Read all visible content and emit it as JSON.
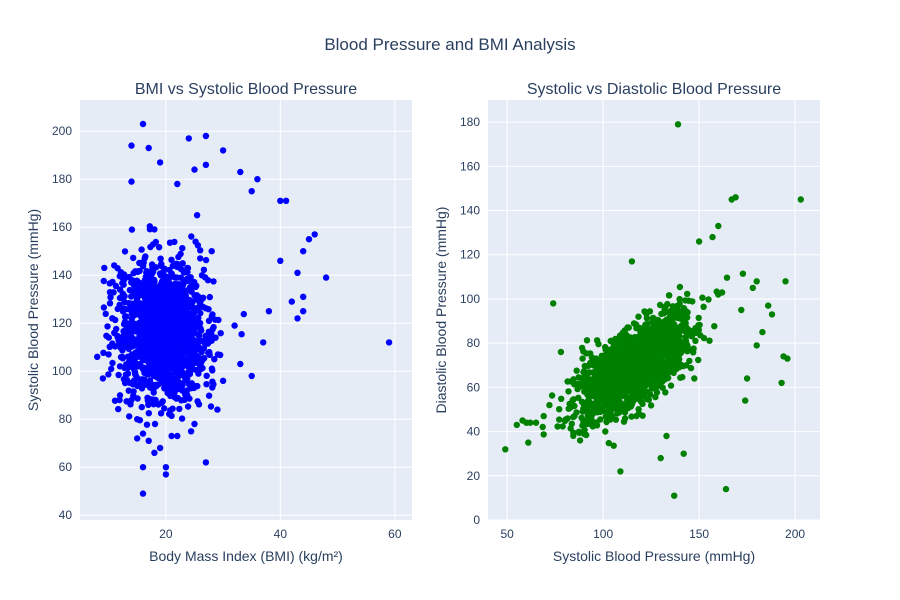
{
  "title": "Blood Pressure and BMI Analysis",
  "chart_data": [
    {
      "type": "scatter",
      "title": "BMI vs Systolic Blood Pressure",
      "xlabel": "Body Mass Index (BMI) (kg/m²)",
      "ylabel": "Systolic Blood Pressure (mmHg)",
      "xlim": [
        5,
        63
      ],
      "ylim": [
        38,
        213
      ],
      "xticks": [
        20,
        40,
        60
      ],
      "yticks": [
        40,
        60,
        80,
        100,
        120,
        140,
        160,
        180,
        200
      ],
      "grid": true,
      "color": "#0000ff",
      "series": [
        {
          "cluster": {
            "count": 1700,
            "x_mean": 19.5,
            "x_sd": 3.6,
            "y_mean": 117,
            "y_sd": 14
          },
          "points": [
            [
              16,
              203
            ],
            [
              27,
              198
            ],
            [
              24,
              197
            ],
            [
              14,
              194
            ],
            [
              17,
              193
            ],
            [
              30,
              192
            ],
            [
              19,
              187
            ],
            [
              27,
              186
            ],
            [
              25,
              184
            ],
            [
              36,
              180
            ],
            [
              33,
              183
            ],
            [
              14,
              179
            ],
            [
              22,
              178
            ],
            [
              40,
              171
            ],
            [
              41,
              171
            ],
            [
              35,
              175
            ],
            [
              46,
              157
            ],
            [
              45,
              155
            ],
            [
              44,
              150
            ],
            [
              40,
              146
            ],
            [
              43,
              141
            ],
            [
              48,
              139
            ],
            [
              44,
              131
            ],
            [
              42,
              129
            ],
            [
              43,
              122
            ],
            [
              44,
              125
            ],
            [
              32,
              119
            ],
            [
              38,
              125
            ],
            [
              59,
              112
            ],
            [
              8,
              106
            ],
            [
              9,
              97
            ],
            [
              10,
              107
            ],
            [
              11,
              116
            ],
            [
              12,
              134
            ],
            [
              14,
              88
            ],
            [
              15,
              80
            ],
            [
              16,
              74
            ],
            [
              15,
              72
            ],
            [
              17,
              71
            ],
            [
              18,
              66
            ],
            [
              16,
              60
            ],
            [
              19,
              68
            ],
            [
              20,
              60
            ],
            [
              20,
              57
            ],
            [
              16,
              49
            ],
            [
              22,
              73
            ],
            [
              21,
              73
            ],
            [
              25,
              78
            ],
            [
              27,
              62
            ],
            [
              29,
              84
            ],
            [
              30,
              96
            ],
            [
              33,
              103
            ],
            [
              35,
              98
            ],
            [
              37,
              112
            ],
            [
              28,
              150
            ],
            [
              26,
              147
            ]
          ]
        }
      ]
    },
    {
      "type": "scatter",
      "title": "Systolic vs Diastolic Blood Pressure",
      "xlabel": "Systolic Blood Pressure (mmHg)",
      "ylabel": "Diastolic Blood Pressure (mmHg)",
      "xlim": [
        40,
        213
      ],
      "ylim": [
        0,
        190
      ],
      "xticks": [
        50,
        100,
        150,
        200
      ],
      "yticks": [
        0,
        20,
        40,
        60,
        80,
        100,
        120,
        140,
        160,
        180
      ],
      "grid": true,
      "color": "#008000",
      "series": [
        {
          "cluster": {
            "count": 1700,
            "x_mean": 117,
            "x_sd": 14,
            "y_mean": 70,
            "y_sd": 11,
            "slope": 0.55
          },
          "points": [
            [
              139,
              179
            ],
            [
              203,
              145
            ],
            [
              169,
              146
            ],
            [
              167,
              145
            ],
            [
              160,
              133
            ],
            [
              157,
              128
            ],
            [
              150,
              126
            ],
            [
              180,
              108
            ],
            [
              178,
              105
            ],
            [
              195,
              108
            ],
            [
              196,
              73
            ],
            [
              193,
              62
            ],
            [
              194,
              74
            ],
            [
              74,
              98
            ],
            [
              49,
              32
            ],
            [
              55,
              43
            ],
            [
              58,
              45
            ],
            [
              60,
              44
            ],
            [
              61,
              35
            ],
            [
              62,
              44
            ],
            [
              65,
              44
            ],
            [
              69,
              47
            ],
            [
              78,
              76
            ],
            [
              72,
              52
            ],
            [
              88,
              36
            ],
            [
              109,
              22
            ],
            [
              137,
              11
            ],
            [
              164,
              14
            ],
            [
              174,
              54
            ],
            [
              175,
              64
            ],
            [
              142,
              30
            ],
            [
              130,
              28
            ],
            [
              133,
              38
            ],
            [
              85,
              47
            ],
            [
              90,
              39
            ],
            [
              115,
              117
            ],
            [
              188,
              93
            ],
            [
              186,
              97
            ],
            [
              183,
              85
            ],
            [
              180,
              79
            ],
            [
              172,
              95
            ]
          ]
        }
      ]
    }
  ]
}
